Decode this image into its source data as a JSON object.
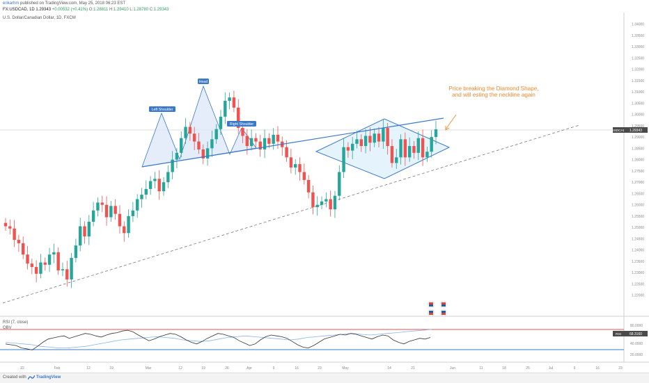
{
  "header": {
    "user": "erikarhm",
    "publish_text": "published on TradingView.com, May 25, 2018 06:23 EST",
    "symbol_line": "FX:USDCAD, 1D 1.29343",
    "change": "+0.00532 (+0.41%)",
    "o_label": "O:",
    "o_value": "1.28811",
    "h_label": "H:",
    "h_value": "1.29410",
    "l_label": "L:",
    "l_value": "1.28780",
    "c_label": "C:",
    "c_value": "1.29343"
  },
  "symbol_title": "U.S. Dollar/Canadian Dollar, 1D, FXCM",
  "rsi_label": "RSI (7, close)",
  "obv_label": "OBV",
  "price_tag": "USDCAD",
  "price_value": "1.29343",
  "rsi_tag": "RSI",
  "rsi_value": "68.3160",
  "annotation": {
    "line1": "Price breaking the Diamond Shape,",
    "line2": "and will esting the neckline again"
  },
  "pattern_labels": [
    "Left Shoulder",
    "Head",
    "Right Shoulder"
  ],
  "footer": {
    "created": "Created with",
    "brand": "TradingView"
  },
  "colors": {
    "up": "#26a69a",
    "down": "#ef5350",
    "trend": "#3a78c8",
    "annotation": "#ee8a2f",
    "rsi": "#333333",
    "obv": "#8ab3e6"
  },
  "chart_data": {
    "type": "candlestick",
    "title": "U.S. Dollar/Canadian Dollar, 1D, FXCM",
    "ylim": [
      1.215,
      1.342
    ],
    "y_ticks": [
      "1.34000",
      "1.33500",
      "1.33000",
      "1.32500",
      "1.32000",
      "1.31500",
      "1.31000",
      "1.30500",
      "1.30000",
      "1.29500",
      "1.29000",
      "1.28500",
      "1.28000",
      "1.27500",
      "1.27000",
      "1.26500",
      "1.26000",
      "1.25500",
      "1.25000",
      "1.24500",
      "1.24000",
      "1.23500",
      "1.23000",
      "1.22500",
      "1.22000"
    ],
    "x_ticks": [
      "22",
      "Feb",
      "12",
      "19",
      "Mar",
      "12",
      "19",
      "26",
      "Apr",
      "9",
      "16",
      "23",
      "May",
      "14",
      "21",
      "Jun",
      "11",
      "18",
      "25",
      "Jul",
      "9",
      "16",
      "23"
    ],
    "candles_close": [
      1.2505,
      1.2495,
      1.2445,
      1.243,
      1.238,
      1.234,
      1.2325,
      1.2295,
      1.2345,
      1.2335,
      1.238,
      1.239,
      1.231,
      1.2315,
      1.227,
      1.2365,
      1.242,
      1.2505,
      1.246,
      1.2525,
      1.2575,
      1.261,
      1.26,
      1.2545,
      1.2595,
      1.256,
      1.2505,
      1.2475,
      1.255,
      1.2575,
      1.2625,
      1.2645,
      1.267,
      1.2705,
      1.2715,
      1.266,
      1.27,
      1.2745,
      1.28,
      1.283,
      1.2895,
      1.2945,
      1.2915,
      1.288,
      1.2845,
      1.2805,
      1.285,
      1.289,
      1.2935,
      1.299,
      1.306,
      1.3075,
      1.303,
      1.294,
      1.2905,
      1.286,
      1.2895,
      1.288,
      1.2845,
      1.2895,
      1.287,
      1.291,
      1.288,
      1.2855,
      1.281,
      1.2765,
      1.278,
      1.2745,
      1.271,
      1.2655,
      1.259,
      1.26,
      1.2615,
      1.2625,
      1.258,
      1.264,
      1.2745,
      1.2855,
      1.284,
      1.287,
      1.289,
      1.286,
      1.2905,
      1.2875,
      1.2915,
      1.288,
      1.294,
      1.286,
      1.2785,
      1.281,
      1.289,
      1.281,
      1.286,
      1.283,
      1.2895,
      1.281,
      1.2835,
      1.29,
      1.2934
    ],
    "rsi": {
      "name": "RSI (7, close)",
      "last": 68.316,
      "levels": [
        70,
        30
      ]
    },
    "annotations": [
      "Left Shoulder",
      "Head",
      "Right Shoulder",
      "Price breaking the Diamond Shape,",
      "and will esting the neckline again"
    ]
  }
}
